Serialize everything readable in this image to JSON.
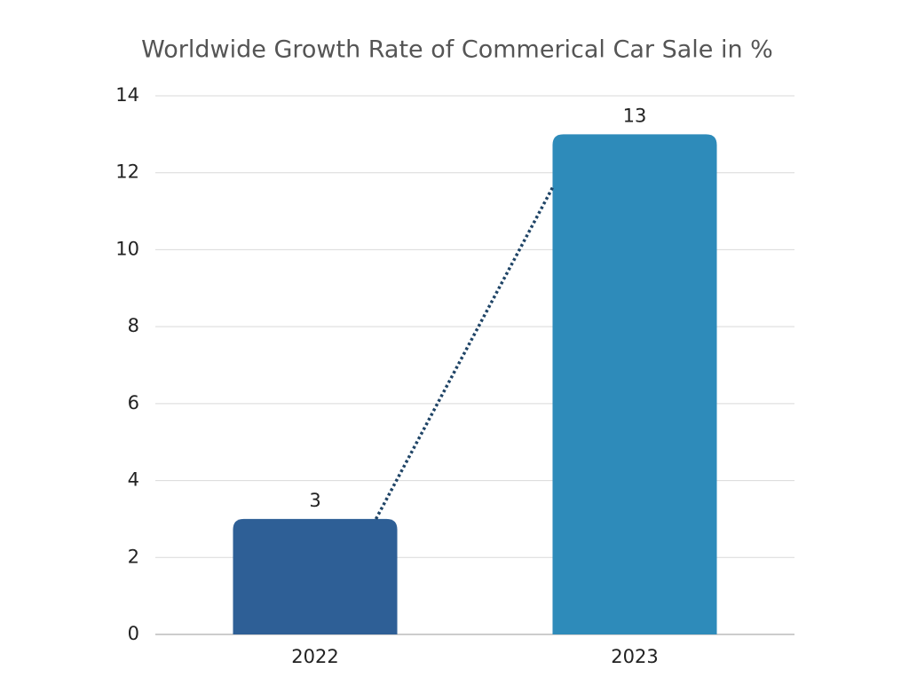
{
  "chart_data": {
    "type": "bar",
    "title": "Worldwide Growth Rate of Commerical Car Sale in %",
    "categories": [
      "2022",
      "2023"
    ],
    "values": [
      3,
      13
    ],
    "colors": [
      "#2e5f96",
      "#2e8bba"
    ],
    "ylim": [
      0,
      14
    ],
    "yticks": [
      0,
      2,
      4,
      6,
      8,
      10,
      12,
      14
    ],
    "grid": true,
    "trend_line_color": "#1f4466"
  }
}
